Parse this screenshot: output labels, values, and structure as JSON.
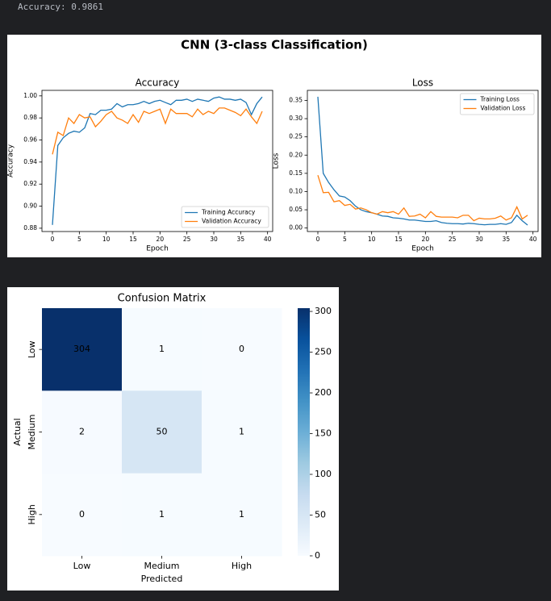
{
  "output_text": "Accuracy: 0.9861",
  "figure_title": "CNN (3-class Classification)",
  "chart_data": [
    {
      "type": "line",
      "title": "Accuracy",
      "x_label": "Epoch",
      "y_label": "Accuracy",
      "x": [
        0,
        1,
        2,
        3,
        4,
        5,
        6,
        7,
        8,
        9,
        10,
        11,
        12,
        13,
        14,
        15,
        16,
        17,
        18,
        19,
        20,
        21,
        22,
        23,
        24,
        25,
        26,
        27,
        28,
        29,
        30,
        31,
        32,
        33,
        34,
        35,
        36,
        37,
        38,
        39
      ],
      "series": [
        {
          "name": "Training Accuracy",
          "color": "#1f77b4",
          "values": [
            0.883,
            0.955,
            0.962,
            0.966,
            0.968,
            0.967,
            0.971,
            0.984,
            0.983,
            0.987,
            0.987,
            0.988,
            0.993,
            0.99,
            0.992,
            0.992,
            0.993,
            0.995,
            0.993,
            0.995,
            0.996,
            0.994,
            0.992,
            0.996,
            0.996,
            0.997,
            0.995,
            0.997,
            0.996,
            0.995,
            0.998,
            0.999,
            0.997,
            0.997,
            0.996,
            0.997,
            0.994,
            0.983,
            0.993,
            0.999
          ]
        },
        {
          "name": "Validation Accuracy",
          "color": "#ff7f0e",
          "values": [
            0.947,
            0.967,
            0.964,
            0.98,
            0.975,
            0.983,
            0.98,
            0.981,
            0.972,
            0.977,
            0.983,
            0.986,
            0.98,
            0.978,
            0.975,
            0.983,
            0.976,
            0.986,
            0.984,
            0.986,
            0.988,
            0.975,
            0.988,
            0.984,
            0.984,
            0.984,
            0.981,
            0.988,
            0.983,
            0.986,
            0.984,
            0.989,
            0.989,
            0.987,
            0.985,
            0.982,
            0.988,
            0.981,
            0.975,
            0.986
          ]
        }
      ],
      "xlim": [
        -1.95,
        40.95
      ],
      "xticks": [
        0,
        5,
        10,
        15,
        20,
        25,
        30,
        35,
        40
      ],
      "ylim": [
        0.877,
        1.005
      ],
      "yticks": [
        0.88,
        {
          "value": 0.9,
          "label": "0.90"
        },
        0.92,
        0.94,
        0.96,
        0.98,
        {
          "value": 1,
          "label": "1.00"
        }
      ],
      "legend": "lower right"
    },
    {
      "type": "line",
      "title": "Loss",
      "x_label": "Epoch",
      "y_label": "Loss",
      "x": [
        0,
        1,
        2,
        3,
        4,
        5,
        6,
        7,
        8,
        9,
        10,
        11,
        12,
        13,
        14,
        15,
        16,
        17,
        18,
        19,
        20,
        21,
        22,
        23,
        24,
        25,
        26,
        27,
        28,
        29,
        30,
        31,
        32,
        33,
        34,
        35,
        36,
        37,
        38,
        39
      ],
      "series": [
        {
          "name": "Training Loss",
          "color": "#1f77b4",
          "values": [
            0.36,
            0.15,
            0.125,
            0.105,
            0.088,
            0.085,
            0.075,
            0.06,
            0.05,
            0.045,
            0.042,
            0.038,
            0.033,
            0.032,
            0.028,
            0.027,
            0.025,
            0.022,
            0.022,
            0.02,
            0.018,
            0.018,
            0.02,
            0.015,
            0.013,
            0.012,
            0.012,
            0.011,
            0.013,
            0.012,
            0.01,
            0.009,
            0.01,
            0.01,
            0.012,
            0.01,
            0.015,
            0.035,
            0.02,
            0.008
          ]
        },
        {
          "name": "Validation Loss",
          "color": "#ff7f0e",
          "values": [
            0.145,
            0.097,
            0.098,
            0.072,
            0.075,
            0.062,
            0.065,
            0.052,
            0.055,
            0.05,
            0.042,
            0.038,
            0.045,
            0.042,
            0.045,
            0.038,
            0.055,
            0.032,
            0.033,
            0.038,
            0.028,
            0.045,
            0.032,
            0.03,
            0.03,
            0.03,
            0.028,
            0.035,
            0.035,
            0.02,
            0.027,
            0.025,
            0.025,
            0.027,
            0.033,
            0.022,
            0.028,
            0.058,
            0.025,
            0.035
          ]
        }
      ],
      "xlim": [
        -1.95,
        40.95
      ],
      "xticks": [
        0,
        5,
        10,
        15,
        20,
        25,
        30,
        35,
        40
      ],
      "ylim": [
        -0.0096,
        0.3776
      ],
      "yticks": [
        {
          "value": 0,
          "label": "0.00"
        },
        0.05,
        {
          "value": 0.1,
          "label": "0.10"
        },
        0.15,
        {
          "value": 0.2,
          "label": "0.20"
        },
        0.25,
        {
          "value": 0.3,
          "label": "0.30"
        },
        0.35
      ],
      "legend": "upper right"
    },
    {
      "type": "heatmap",
      "title": "Confusion Matrix",
      "x_label": "Predicted",
      "y_label": "Actual",
      "categories": [
        "Low",
        "Medium",
        "High"
      ],
      "values": [
        [
          304,
          1,
          0
        ],
        [
          2,
          50,
          1
        ],
        [
          0,
          1,
          1
        ]
      ],
      "colormap": "Blues",
      "clim": [
        0,
        304
      ],
      "cticks": [
        0,
        50,
        100,
        150,
        200,
        250,
        300
      ]
    }
  ]
}
